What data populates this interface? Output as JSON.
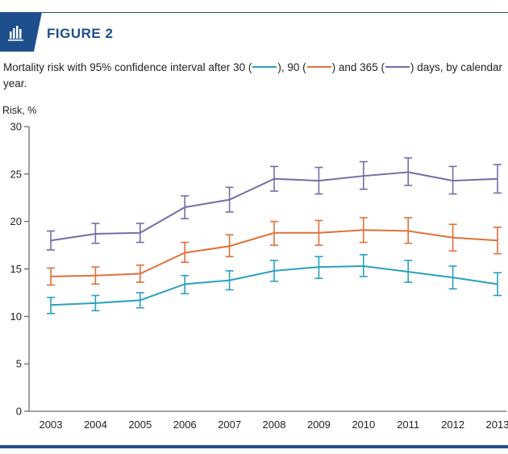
{
  "figure": {
    "label": "FIGURE 2",
    "icon": "bar-chart-icon",
    "accent_color": "#1f4e8c"
  },
  "caption": {
    "part1": "Mortality risk with 95% confidence interval after 30 (",
    "part2": "), 90 (",
    "part3": ") and 365 (",
    "part4": ") days, by calendar year."
  },
  "chart_data": {
    "type": "line",
    "title": "",
    "xlabel": "",
    "ylabel": "Risk, %",
    "ylim": [
      0,
      30
    ],
    "yticks": [
      0,
      5,
      10,
      15,
      20,
      25,
      30
    ],
    "grid": false,
    "categories": [
      "2003",
      "2004",
      "2005",
      "2006",
      "2007",
      "2008",
      "2009",
      "2010",
      "2011",
      "2012",
      "2013"
    ],
    "series": [
      {
        "color": "#2aa0c0",
        "values": [
          11.2,
          11.4,
          11.7,
          13.4,
          13.8,
          14.8,
          15.2,
          15.3,
          14.7,
          14.1,
          13.4
        ],
        "lower": [
          10.3,
          10.6,
          10.9,
          12.4,
          12.8,
          13.7,
          14.0,
          14.2,
          13.6,
          12.9,
          12.2
        ],
        "upper": [
          12.0,
          12.2,
          12.5,
          14.3,
          14.8,
          15.9,
          16.3,
          16.5,
          15.9,
          15.3,
          14.6
        ]
      },
      {
        "color": "#e0703a",
        "values": [
          14.2,
          14.3,
          14.5,
          16.7,
          17.4,
          18.8,
          18.8,
          19.1,
          19.0,
          18.3,
          18.0
        ],
        "lower": [
          13.3,
          13.4,
          13.6,
          15.7,
          16.3,
          17.5,
          17.5,
          17.8,
          17.7,
          16.9,
          16.6
        ],
        "upper": [
          15.1,
          15.2,
          15.4,
          17.8,
          18.6,
          20.0,
          20.1,
          20.4,
          20.4,
          19.7,
          19.4
        ]
      },
      {
        "color": "#7b6aa8",
        "values": [
          18.0,
          18.7,
          18.8,
          21.5,
          22.3,
          24.5,
          24.3,
          24.8,
          25.2,
          24.3,
          24.5
        ],
        "lower": [
          17.0,
          17.7,
          17.8,
          20.3,
          21.0,
          23.2,
          22.9,
          23.4,
          23.8,
          22.9,
          23.0
        ],
        "upper": [
          19.0,
          19.8,
          19.8,
          22.7,
          23.6,
          25.8,
          25.7,
          26.3,
          26.7,
          25.8,
          26.0
        ]
      }
    ]
  }
}
